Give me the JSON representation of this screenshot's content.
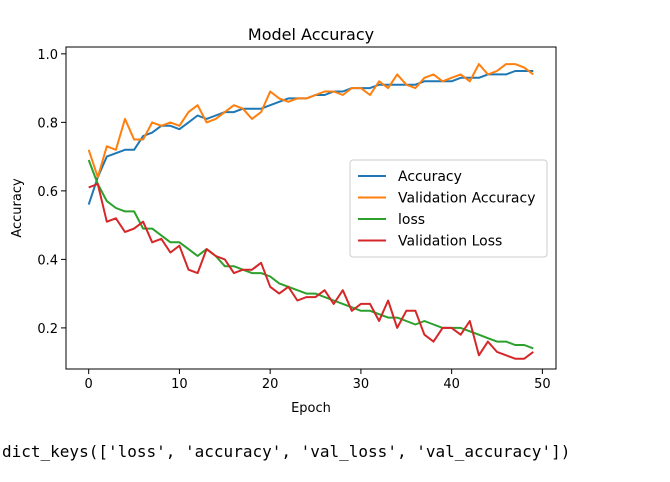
{
  "chart_data": {
    "type": "line",
    "title": "Model Accuracy",
    "xlabel": "Epoch",
    "ylabel": "Accuracy",
    "xlim": [
      -2.5,
      51.5
    ],
    "ylim": [
      0.08,
      1.02
    ],
    "xticks": [
      0,
      10,
      20,
      30,
      40,
      50
    ],
    "xtick_labels": [
      "0",
      "10",
      "20",
      "30",
      "40",
      "50"
    ],
    "yticks": [
      0.2,
      0.4,
      0.6,
      0.8,
      1.0
    ],
    "ytick_labels": [
      "0.2",
      "0.4",
      "0.6",
      "0.8",
      "1.0"
    ],
    "grid": false,
    "legend_position": "center-right",
    "x": [
      0,
      1,
      2,
      3,
      4,
      5,
      6,
      7,
      8,
      9,
      10,
      11,
      12,
      13,
      14,
      15,
      16,
      17,
      18,
      19,
      20,
      21,
      22,
      23,
      24,
      25,
      26,
      27,
      28,
      29,
      30,
      31,
      32,
      33,
      34,
      35,
      36,
      37,
      38,
      39,
      40,
      41,
      42,
      43,
      44,
      45,
      46,
      47,
      48,
      49
    ],
    "series": [
      {
        "name": "Accuracy",
        "color": "#1f77b4",
        "values": [
          0.56,
          0.64,
          0.7,
          0.71,
          0.72,
          0.72,
          0.76,
          0.77,
          0.79,
          0.79,
          0.78,
          0.8,
          0.82,
          0.81,
          0.82,
          0.83,
          0.83,
          0.84,
          0.84,
          0.84,
          0.85,
          0.86,
          0.87,
          0.87,
          0.87,
          0.88,
          0.88,
          0.89,
          0.89,
          0.9,
          0.9,
          0.9,
          0.91,
          0.91,
          0.91,
          0.91,
          0.91,
          0.92,
          0.92,
          0.92,
          0.92,
          0.93,
          0.93,
          0.93,
          0.94,
          0.94,
          0.94,
          0.95,
          0.95,
          0.95
        ]
      },
      {
        "name": "Validation Accuracy",
        "color": "#ff7f0e",
        "values": [
          0.72,
          0.64,
          0.73,
          0.72,
          0.81,
          0.75,
          0.75,
          0.8,
          0.79,
          0.8,
          0.79,
          0.83,
          0.85,
          0.8,
          0.81,
          0.83,
          0.85,
          0.84,
          0.81,
          0.83,
          0.89,
          0.87,
          0.86,
          0.87,
          0.87,
          0.88,
          0.89,
          0.89,
          0.88,
          0.9,
          0.9,
          0.88,
          0.92,
          0.9,
          0.94,
          0.91,
          0.9,
          0.93,
          0.94,
          0.92,
          0.93,
          0.94,
          0.92,
          0.97,
          0.94,
          0.95,
          0.97,
          0.97,
          0.96,
          0.94
        ]
      },
      {
        "name": "loss",
        "color": "#2ca02c",
        "values": [
          0.69,
          0.62,
          0.57,
          0.55,
          0.54,
          0.54,
          0.49,
          0.49,
          0.47,
          0.45,
          0.45,
          0.43,
          0.41,
          0.43,
          0.41,
          0.38,
          0.38,
          0.37,
          0.36,
          0.36,
          0.35,
          0.33,
          0.32,
          0.31,
          0.3,
          0.3,
          0.29,
          0.28,
          0.27,
          0.26,
          0.25,
          0.25,
          0.24,
          0.23,
          0.23,
          0.22,
          0.21,
          0.22,
          0.21,
          0.2,
          0.2,
          0.2,
          0.19,
          0.18,
          0.17,
          0.16,
          0.16,
          0.15,
          0.15,
          0.14
        ]
      },
      {
        "name": "Validation Loss",
        "color": "#d62728",
        "values": [
          0.61,
          0.62,
          0.51,
          0.52,
          0.48,
          0.49,
          0.51,
          0.45,
          0.46,
          0.42,
          0.44,
          0.37,
          0.36,
          0.43,
          0.41,
          0.4,
          0.36,
          0.37,
          0.37,
          0.39,
          0.32,
          0.3,
          0.32,
          0.28,
          0.29,
          0.29,
          0.31,
          0.27,
          0.31,
          0.25,
          0.27,
          0.27,
          0.22,
          0.28,
          0.2,
          0.25,
          0.25,
          0.18,
          0.16,
          0.2,
          0.2,
          0.18,
          0.22,
          0.12,
          0.16,
          0.13,
          0.12,
          0.11,
          0.11,
          0.13
        ]
      }
    ]
  },
  "console": {
    "output": "dict_keys(['loss', 'accuracy', 'val_loss', 'val_accuracy'])"
  }
}
